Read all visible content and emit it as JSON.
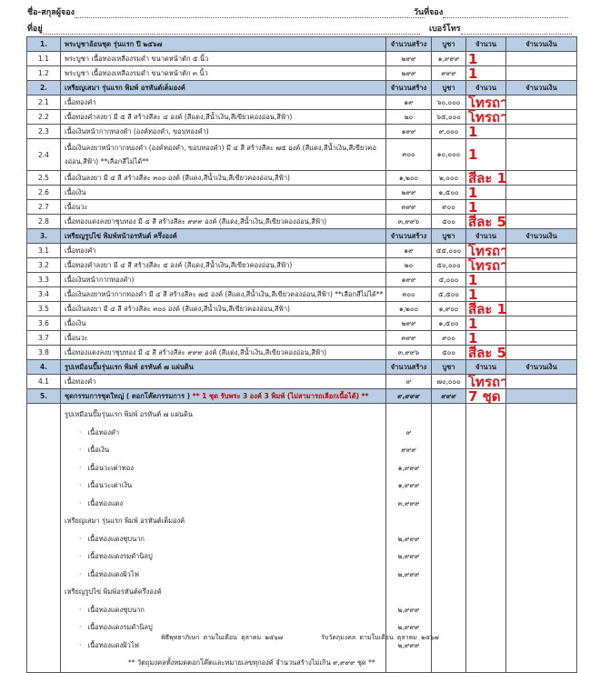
{
  "header": {
    "name_label": "ชื่อ-สกุลผู้จอง",
    "date_label": "วันที่จอง",
    "address_label": "ที่อยู่",
    "phone_label": "เบอร์โทร"
  },
  "columns": {
    "made": "จำนวนสร้าง",
    "price": "บูชา",
    "qty": "จำนวน",
    "amount": "จำนวนเงิน"
  },
  "sections": [
    {
      "no": "1.",
      "title": "พระบูชาอ้อนชุด รุ่นแรก ปี ๒๕๖๗",
      "items": [
        {
          "no": "1.1",
          "desc": "พระบูชา เนื้อทองเหลืองรมดำ ขนาดหน้าตัก ๕ นิ้ว",
          "made": "๒๙๙",
          "price": "๑,๙๙๙",
          "qty": "1"
        },
        {
          "no": "1.2",
          "desc": "พระบูชา เนื้อทองเหลืองรมดำ ขนาดหน้าตัก ๓ นิ้ว",
          "made": "๒๙๙",
          "price": "๙๙๙",
          "qty": "1"
        }
      ]
    },
    {
      "no": "2.",
      "title": "เหรียญเสมา รุ่นแรก พิมพ์ อรหันต์เต็มองค์",
      "items": [
        {
          "no": "2.1",
          "desc": "เนื้อทองคำ",
          "made": "๑๙",
          "price": "๖๐,๐๐๐",
          "qty": "โทรถาม"
        },
        {
          "no": "2.2",
          "desc": "เนื้อทองคำลงยา มี ๕ สี สร้างสีละ ๔ องค์ (สีแดง,สีน้ำเงิน,สีเขียวคองอ่อน,สีฟ้า)",
          "made": "๒๐",
          "price": "๖๕,๐๐๐",
          "qty": "โทรถาม"
        },
        {
          "no": "2.3",
          "desc": "เนื้อเงินหน้ากากทองคำ (องค์ทองคำ, ขอบทองคำ)",
          "made": "๑๙๙",
          "price": "๙,๐๐๐",
          "qty": "1"
        },
        {
          "no": "2.4",
          "desc": "เนื้อเงินลงยาหน้ากากทองคำ (องค์ทองคำ, ขอบทองคำ) มี ๔ สี สร้างสีละ ๗๕ องค์ (สีแดง,สีน้ำเงิน,สีเขียวคองอ่อน,สีฟ้า) **เลือกสีไม่ได้**",
          "made": "๓๐๐",
          "price": "๑๐,๐๐๐",
          "qty": "1",
          "tall": true
        },
        {
          "no": "2.5",
          "desc": "เนื้อเงินลงยา มี ๔ สี สร้างสีละ ๓๐๐ องค์ (สีแดง,สีน้ำเงิน,สีเขียวคองอ่อน,สีฟ้า)",
          "made": "๑,๒๐๐",
          "price": "๒,๐๐๐",
          "qty": "สีละ 1"
        },
        {
          "no": "2.6",
          "desc": "เนื้อเงิน",
          "made": "๒๙๙",
          "price": "๑,๕๐๐",
          "qty": "1"
        },
        {
          "no": "2.7",
          "desc": "เนื้อนวะ",
          "made": "๓๙๙",
          "price": "๙๐๐",
          "qty": "1"
        },
        {
          "no": "2.8",
          "desc": "เนื้อทองแดงลงยาชุบทอง มี ๔ สี สร้างสีละ ๙๙๙ องค์ (สีแดง,สีน้ำเงิน,สีเขียวคองอ่อน,สีฟ้า)",
          "made": "๓,๙๙๖",
          "price": "๕๐๐",
          "qty": "สีละ 5"
        }
      ]
    },
    {
      "no": "3.",
      "title": "เหรียญรูปไข่ พิมพ์หน้าอรหันต์ ครึ่งองค์",
      "items": [
        {
          "no": "3.1",
          "desc": "เนื้อทองคำ",
          "made": "๑๙",
          "price": "๕๕,๐๐๐",
          "qty": "โทรถาม"
        },
        {
          "no": "3.2",
          "desc": "เนื้อทองคำลงยา มี ๔ สี สร้างสีละ ๕ องค์ (สีแดง,สีน้ำเงิน,สีเขียวคองอ่อน,สีฟ้า)",
          "made": "๒๐",
          "price": "๕๐,๐๐๐",
          "qty": "โทรถาม"
        },
        {
          "no": "3.3",
          "desc": "เนื้อเงินหน้ากากทองคำ)",
          "made": "๑๙๙",
          "price": "๕,๐๐๐",
          "qty": "1"
        },
        {
          "no": "3.4",
          "desc": "เนื้อเงินลงยาหน้ากากทองคำ มี ๔ สี สร้างสีละ ๗๕ องค์ (สีแดง,สีน้ำเงิน,สีเขียวคองอ่อน,สีฟ้า) **เลือกสีไม่ได้**",
          "made": "๓๐๐",
          "price": "๕,๕๐๐",
          "qty": "1"
        },
        {
          "no": "3.5",
          "desc": "เนื้อเงินลงยา มี ๔ สี สร้างสีละ ๓๐๐ องค์ (สีแดง,สีน้ำเงิน,สีเขียวคองอ่อน,สีฟ้า)",
          "made": "๑,๒๐๐",
          "price": "๑,๙๐๐",
          "qty": "สีละ 1"
        },
        {
          "no": "3.6",
          "desc": "เนื้อเงิน",
          "made": "๒๙๙",
          "price": "๑,๕๐๐",
          "qty": "1"
        },
        {
          "no": "3.7",
          "desc": "เนื้อนวะ",
          "made": "๓๙๙",
          "price": "๙๐๐",
          "qty": "1"
        },
        {
          "no": "3.8",
          "desc": "เนื้อทองแดงลงยาชุบทอง มี ๔ สี สร้างสีละ ๙๙๙ องค์ (สีแดง,สีน้ำเงิน,สีเขียวคองอ่อน,สีฟ้า)",
          "made": "๓,๙๙๖",
          "price": "๕๐๐",
          "qty": "สีละ 5"
        }
      ]
    },
    {
      "no": "4.",
      "title": "รูปเหมือนปั๊มรุ่นแรก พิมพ์ อรหันต์ ๗ แผ่นดิน",
      "items": [
        {
          "no": "4.1",
          "desc": "เนื้อทองคำ",
          "made": "๙",
          "price": "๗๐,๐๐๐",
          "qty": "โทรถาม"
        }
      ]
    }
  ],
  "set": {
    "no": "5.",
    "title": "ชุดกรรมการชุดใหญ่ ( ตอกโค๊ตกรรมการ )",
    "note": "** 1 ชุด รับพระ 3 องค์ 3 พิมพ์ (ไม่สามารถเลือกเนื้อได้) **",
    "made": "๙,๙๙๙",
    "price": "๙๙๙",
    "qty": "7  ชุด",
    "groups": [
      {
        "title": "รูปเหมือนปั๊มรุ่นแรก พิมพ์ อรหันต์ ๗ แผ่นดิน",
        "items": [
          {
            "desc": "เนื้อทองคำ",
            "made": "๙"
          },
          {
            "desc": "เนื้อเงิน",
            "made": "๙๙๙"
          },
          {
            "desc": "เนื้อนวะเต่าทอง",
            "made": "๑,๙๙๙"
          },
          {
            "desc": "เนื้อนวะเต่าเงิน",
            "made": "๑,๙๙๙"
          },
          {
            "desc": "เนื้อทองแดง",
            "made": "๓,๙๙๙"
          }
        ]
      },
      {
        "title": "เหรียญเสมา รุ่นแรก พิมพ์ อรหันต์เต็มองค์",
        "items": [
          {
            "desc": "เนื้อทองแดงชุบนาก",
            "made": "๒,๙๙๙"
          },
          {
            "desc": "เนื้อทองแดงรมดำนิลปู",
            "made": "๒,๙๙๙"
          },
          {
            "desc": "เนื้อทองแดงผิวไฟ",
            "made": "๒,๙๙๙"
          }
        ]
      },
      {
        "title": "เหรียญรูปไข่ พิมพ์อรหันต์ครึ่งองค์",
        "items": [
          {
            "desc": "เนื้อทองแดงชุบนาก",
            "made": "๒,๙๙๙"
          },
          {
            "desc": "เนื้อทองแดงรมดำนิลปู",
            "made": "๒,๙๙๙"
          },
          {
            "desc": "เนื้อทองแดงผิวไฟ",
            "made": "๒,๙๙๙"
          }
        ]
      }
    ],
    "footnote": "** วัตถุมงคลทั้งหมดตอกโค๊ตและหมายเลขทุกองค์ จำนวนสร้างไม่เกิน ๙,๙๙๙ ชุด **"
  },
  "footer": {
    "left": "พิธีพุทธาภิเษก ตามในเดือน ตุลาคม ๒๕๖๗",
    "right": "รับวัตถุมงคล ตามในเดือน ตุลาคม ๒๕๖๗"
  },
  "colors": {
    "section_bg": "#b8cce4",
    "handwritten": "#e0161b"
  }
}
